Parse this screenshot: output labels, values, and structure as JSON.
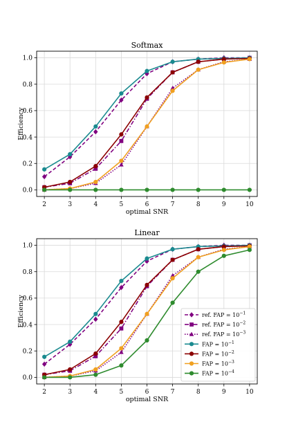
{
  "chart_data": [
    {
      "type": "line",
      "title": "Softmax",
      "xlabel": "optimal SNR",
      "ylabel": "Efficiency",
      "xlim": [
        1.7,
        10.3
      ],
      "ylim": [
        -0.05,
        1.05
      ],
      "xticks": [
        2,
        3,
        4,
        5,
        6,
        7,
        8,
        9,
        10
      ],
      "yticks": [
        0.0,
        0.2,
        0.4,
        0.6,
        0.8,
        1.0
      ],
      "xtick_labels": [
        "2",
        "3",
        "4",
        "5",
        "6",
        "7",
        "8",
        "9",
        "10"
      ],
      "ytick_labels": [
        "0.0",
        "0.2",
        "0.4",
        "0.6",
        "0.8",
        "1.0"
      ],
      "grid": true,
      "legend": null,
      "x": [
        2,
        3,
        4,
        5,
        6,
        7,
        8,
        9,
        10
      ],
      "series": [
        {
          "key": "ref1",
          "color": "#800080",
          "dash": "dash",
          "marker": "diamond",
          "values": [
            0.1,
            0.25,
            0.44,
            0.68,
            0.88,
            0.97,
            0.99,
            1.0,
            1.0
          ]
        },
        {
          "key": "ref2",
          "color": "#800080",
          "dash": "dashdot",
          "marker": "square",
          "values": [
            0.02,
            0.05,
            0.16,
            0.37,
            0.69,
            0.89,
            0.97,
            0.99,
            1.0
          ]
        },
        {
          "key": "ref3",
          "color": "#800080",
          "dash": "dot",
          "marker": "triangle",
          "values": [
            0.0,
            0.01,
            0.05,
            0.19,
            0.48,
            0.77,
            0.91,
            0.97,
            0.99
          ]
        },
        {
          "key": "fap1",
          "color": "#1a8a8f",
          "dash": "solid",
          "marker": "circle",
          "values": [
            0.155,
            0.27,
            0.48,
            0.73,
            0.9,
            0.97,
            0.99,
            0.995,
            1.0
          ]
        },
        {
          "key": "fap2",
          "color": "#8b0000",
          "dash": "solid",
          "marker": "circle",
          "values": [
            0.02,
            0.06,
            0.18,
            0.42,
            0.7,
            0.89,
            0.97,
            0.99,
            0.995
          ]
        },
        {
          "key": "fap3",
          "color": "#f0a020",
          "dash": "solid",
          "marker": "circle",
          "values": [
            0.0,
            0.01,
            0.06,
            0.22,
            0.48,
            0.75,
            0.91,
            0.965,
            0.99
          ]
        },
        {
          "key": "fap4",
          "color": "#2e8b2e",
          "dash": "solid",
          "marker": "circle",
          "values": [
            0.0,
            0.0,
            0.0,
            0.0,
            0.0,
            0.0,
            0.0,
            0.0,
            0.0
          ]
        }
      ]
    },
    {
      "type": "line",
      "title": "Linear",
      "xlabel": "optimal SNR",
      "ylabel": "Efficiency",
      "xlim": [
        1.7,
        10.3
      ],
      "ylim": [
        -0.05,
        1.05
      ],
      "xticks": [
        2,
        3,
        4,
        5,
        6,
        7,
        8,
        9,
        10
      ],
      "yticks": [
        0.0,
        0.2,
        0.4,
        0.6,
        0.8,
        1.0
      ],
      "xtick_labels": [
        "2",
        "3",
        "4",
        "5",
        "6",
        "7",
        "8",
        "9",
        "10"
      ],
      "ytick_labels": [
        "0.0",
        "0.2",
        "0.4",
        "0.6",
        "0.8",
        "1.0"
      ],
      "grid": true,
      "legend": "lower-right",
      "x": [
        2,
        3,
        4,
        5,
        6,
        7,
        8,
        9,
        10
      ],
      "series": [
        {
          "name": "ref. FAP = 10",
          "exp": "−1",
          "color": "#800080",
          "dash": "dash",
          "marker": "diamond",
          "values": [
            0.1,
            0.25,
            0.44,
            0.68,
            0.88,
            0.97,
            0.99,
            1.0,
            1.0
          ]
        },
        {
          "name": "ref. FAP = 10",
          "exp": "−2",
          "color": "#800080",
          "dash": "dashdot",
          "marker": "square",
          "values": [
            0.02,
            0.05,
            0.16,
            0.37,
            0.69,
            0.89,
            0.97,
            0.99,
            1.0
          ]
        },
        {
          "name": "ref. FAP = 10",
          "exp": "−3",
          "color": "#800080",
          "dash": "dot",
          "marker": "triangle",
          "values": [
            0.0,
            0.01,
            0.05,
            0.19,
            0.48,
            0.77,
            0.91,
            0.97,
            0.99
          ]
        },
        {
          "name": "FAP = 10",
          "exp": "−1",
          "color": "#1a8a8f",
          "dash": "solid",
          "marker": "circle",
          "values": [
            0.155,
            0.27,
            0.48,
            0.73,
            0.9,
            0.97,
            0.99,
            0.995,
            1.0
          ]
        },
        {
          "name": "FAP = 10",
          "exp": "−2",
          "color": "#8b0000",
          "dash": "solid",
          "marker": "circle",
          "values": [
            0.02,
            0.06,
            0.18,
            0.42,
            0.7,
            0.89,
            0.97,
            0.99,
            0.995
          ]
        },
        {
          "name": "FAP = 10",
          "exp": "−3",
          "color": "#f0a020",
          "dash": "solid",
          "marker": "circle",
          "values": [
            0.0,
            0.01,
            0.06,
            0.22,
            0.48,
            0.75,
            0.91,
            0.965,
            0.99
          ]
        },
        {
          "name": "FAP = 10",
          "exp": "−4",
          "color": "#2e8b2e",
          "dash": "solid",
          "marker": "circle",
          "values": [
            0.0,
            0.0,
            0.02,
            0.09,
            0.28,
            0.565,
            0.8,
            0.92,
            0.965
          ]
        }
      ]
    }
  ]
}
